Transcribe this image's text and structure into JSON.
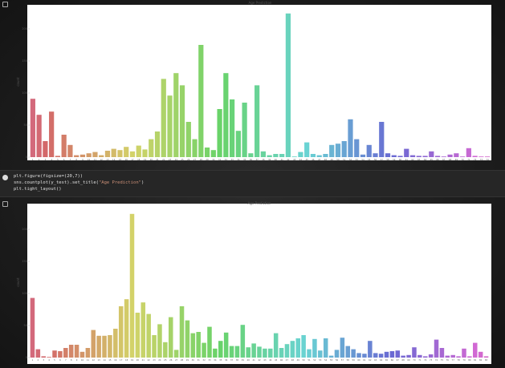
{
  "code": [
    "plt.figure(figsize=(20,7))",
    [
      "sns.countplot(y_test).set_title(",
      "\"Age Prediction\"",
      ")"
    ],
    "plt.tight_layout()"
  ],
  "chart_data": [
    {
      "type": "bar",
      "title": "Age Prediction",
      "y_label": "count",
      "palette": "husl",
      "categories": [
        "1",
        "2",
        "3",
        "4",
        "5",
        "6",
        "7",
        "8",
        "9",
        "10",
        "11",
        "12",
        "13",
        "14",
        "15",
        "16",
        "17",
        "18",
        "19",
        "20",
        "21",
        "22",
        "23",
        "24",
        "25",
        "26",
        "27",
        "28",
        "29",
        "30",
        "31",
        "32",
        "33",
        "34",
        "35",
        "36",
        "37",
        "38",
        "39",
        "40",
        "41",
        "42",
        "43",
        "44",
        "45",
        "46",
        "47",
        "48",
        "49",
        "50",
        "51",
        "52",
        "53",
        "54",
        "55",
        "56",
        "57",
        "58",
        "59",
        "60",
        "61",
        "62",
        "63",
        "64",
        "65",
        "66",
        "67",
        "68",
        "69",
        "70",
        "71",
        "72",
        "73",
        "74"
      ],
      "values": [
        91,
        66,
        25,
        71,
        2,
        35,
        19,
        3,
        4,
        6,
        8,
        3,
        10,
        13,
        11,
        16,
        9,
        18,
        12,
        28,
        40,
        122,
        96,
        131,
        112,
        55,
        28,
        175,
        15,
        11,
        75,
        131,
        90,
        41,
        85,
        6,
        112,
        9,
        3,
        5,
        5,
        224,
        1,
        8,
        23,
        5,
        3,
        5,
        19,
        21,
        25,
        59,
        28,
        4,
        19,
        6,
        55,
        6,
        3,
        2,
        13,
        3,
        2,
        2,
        9,
        2,
        1,
        4,
        6,
        1,
        14,
        2,
        1,
        1
      ],
      "ylim": [
        0,
        235
      ],
      "yticks": [
        0,
        50,
        100,
        150,
        200
      ]
    },
    {
      "type": "bar",
      "title": "Age Prediction",
      "y_label": "count",
      "palette": "husl",
      "categories": [
        "1",
        "2",
        "3",
        "4",
        "5",
        "6",
        "7",
        "8",
        "9",
        "10",
        "11",
        "12",
        "13",
        "14",
        "15",
        "16",
        "17",
        "18",
        "19",
        "20",
        "21",
        "22",
        "23",
        "24",
        "25",
        "26",
        "27",
        "28",
        "29",
        "30",
        "31",
        "32",
        "33",
        "34",
        "35",
        "36",
        "37",
        "38",
        "39",
        "40",
        "41",
        "42",
        "43",
        "44",
        "45",
        "46",
        "47",
        "48",
        "49",
        "50",
        "51",
        "52",
        "53",
        "54",
        "55",
        "56",
        "57",
        "58",
        "59",
        "60",
        "61",
        "62",
        "63",
        "64",
        "65",
        "66",
        "67",
        "68",
        "69",
        "70",
        "71",
        "72",
        "73",
        "74",
        "75",
        "76",
        "77",
        "78",
        "79",
        "80",
        "81",
        "82",
        "83"
      ],
      "values": [
        93,
        13,
        2,
        1,
        11,
        10,
        15,
        20,
        20,
        9,
        15,
        43,
        34,
        34,
        35,
        45,
        80,
        91,
        224,
        70,
        86,
        68,
        35,
        52,
        24,
        63,
        12,
        80,
        58,
        38,
        40,
        23,
        48,
        14,
        26,
        39,
        18,
        18,
        51,
        16,
        22,
        17,
        14,
        14,
        38,
        15,
        21,
        26,
        30,
        35,
        13,
        29,
        11,
        30,
        3,
        12,
        31,
        18,
        13,
        7,
        6,
        26,
        7,
        6,
        9,
        10,
        11,
        3,
        4,
        16,
        4,
        2,
        5,
        28,
        15,
        3,
        4,
        2,
        14,
        2,
        23,
        9,
        2
      ],
      "ylim": [
        0,
        235
      ],
      "yticks": [
        0,
        50,
        100,
        150,
        200
      ]
    }
  ]
}
